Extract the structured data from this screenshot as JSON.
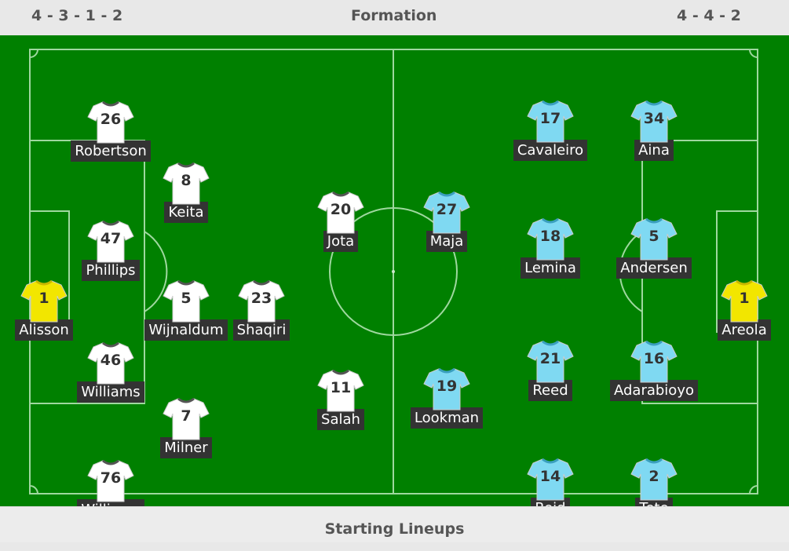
{
  "header": {
    "home_formation": "4 - 3 - 1 - 2",
    "title": "Formation",
    "away_formation": "4 - 4 - 2"
  },
  "footer": {
    "title": "Starting Lineups"
  },
  "colors": {
    "pitch": "#008000",
    "home_shirt": "#ffffff",
    "away_shirt": "#7fd9f2",
    "goalkeeper_shirt": "#f2e600"
  },
  "home": [
    {
      "name": "Robertson",
      "number": "26"
    },
    {
      "name": "Keita",
      "number": "8"
    },
    {
      "name": "Phillips",
      "number": "47"
    },
    {
      "name": "Alisson",
      "number": "1",
      "gk": true
    },
    {
      "name": "Wijnaldum",
      "number": "5"
    },
    {
      "name": "Shaqiri",
      "number": "23"
    },
    {
      "name": "Williams",
      "number": "46"
    },
    {
      "name": "Milner",
      "number": "7"
    },
    {
      "name": "Williams",
      "number": "76"
    },
    {
      "name": "Jota",
      "number": "20"
    },
    {
      "name": "Salah",
      "number": "11"
    }
  ],
  "away": [
    {
      "name": "Maja",
      "number": "27"
    },
    {
      "name": "Lookman",
      "number": "19"
    },
    {
      "name": "Cavaleiro",
      "number": "17"
    },
    {
      "name": "Aina",
      "number": "34"
    },
    {
      "name": "Lemina",
      "number": "18"
    },
    {
      "name": "Andersen",
      "number": "5"
    },
    {
      "name": "Reed",
      "number": "21"
    },
    {
      "name": "Adarabioyo",
      "number": "16"
    },
    {
      "name": "Reid",
      "number": "14"
    },
    {
      "name": "Tete",
      "number": "2"
    },
    {
      "name": "Areola",
      "number": "1",
      "gk": true
    }
  ]
}
